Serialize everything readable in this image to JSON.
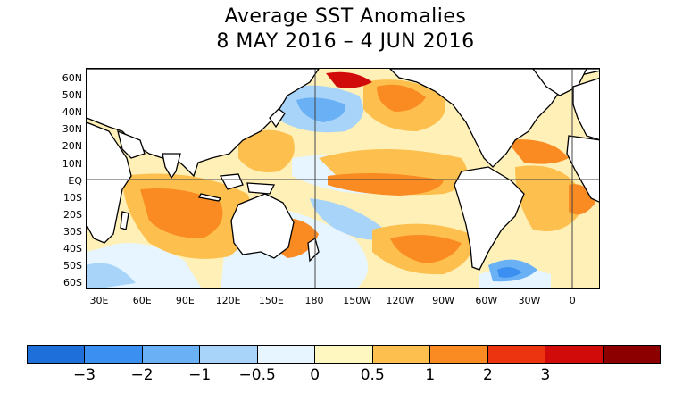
{
  "title": {
    "line1": "Average SST Anomalies",
    "line2": "8 MAY 2016 – 4 JUN 2016"
  },
  "map": {
    "lat_labels": [
      "60N",
      "50N",
      "40N",
      "30N",
      "20N",
      "10N",
      "EQ",
      "10S",
      "20S",
      "30S",
      "40S",
      "50S",
      "60S"
    ],
    "lon_labels": [
      "30E",
      "60E",
      "90E",
      "120E",
      "150E",
      "180",
      "150W",
      "120W",
      "90W",
      "60W",
      "30W",
      "0"
    ],
    "lat_range": [
      65,
      -65
    ],
    "lon_range": [
      20,
      380
    ]
  },
  "colorbar": {
    "colors": [
      "#1e6fd9",
      "#3a8ff0",
      "#6ab0f5",
      "#a8d4fa",
      "#e6f5ff",
      "#fff7c0",
      "#fdc04e",
      "#fa8a22",
      "#ec3510",
      "#d10b0a",
      "#8c0000"
    ],
    "labels": [
      "−3",
      "−2",
      "−1",
      "−0.5",
      "0",
      "0.5",
      "1",
      "2",
      "3"
    ]
  },
  "colors": {
    "land": "#ffffff",
    "coast": "#000000"
  }
}
